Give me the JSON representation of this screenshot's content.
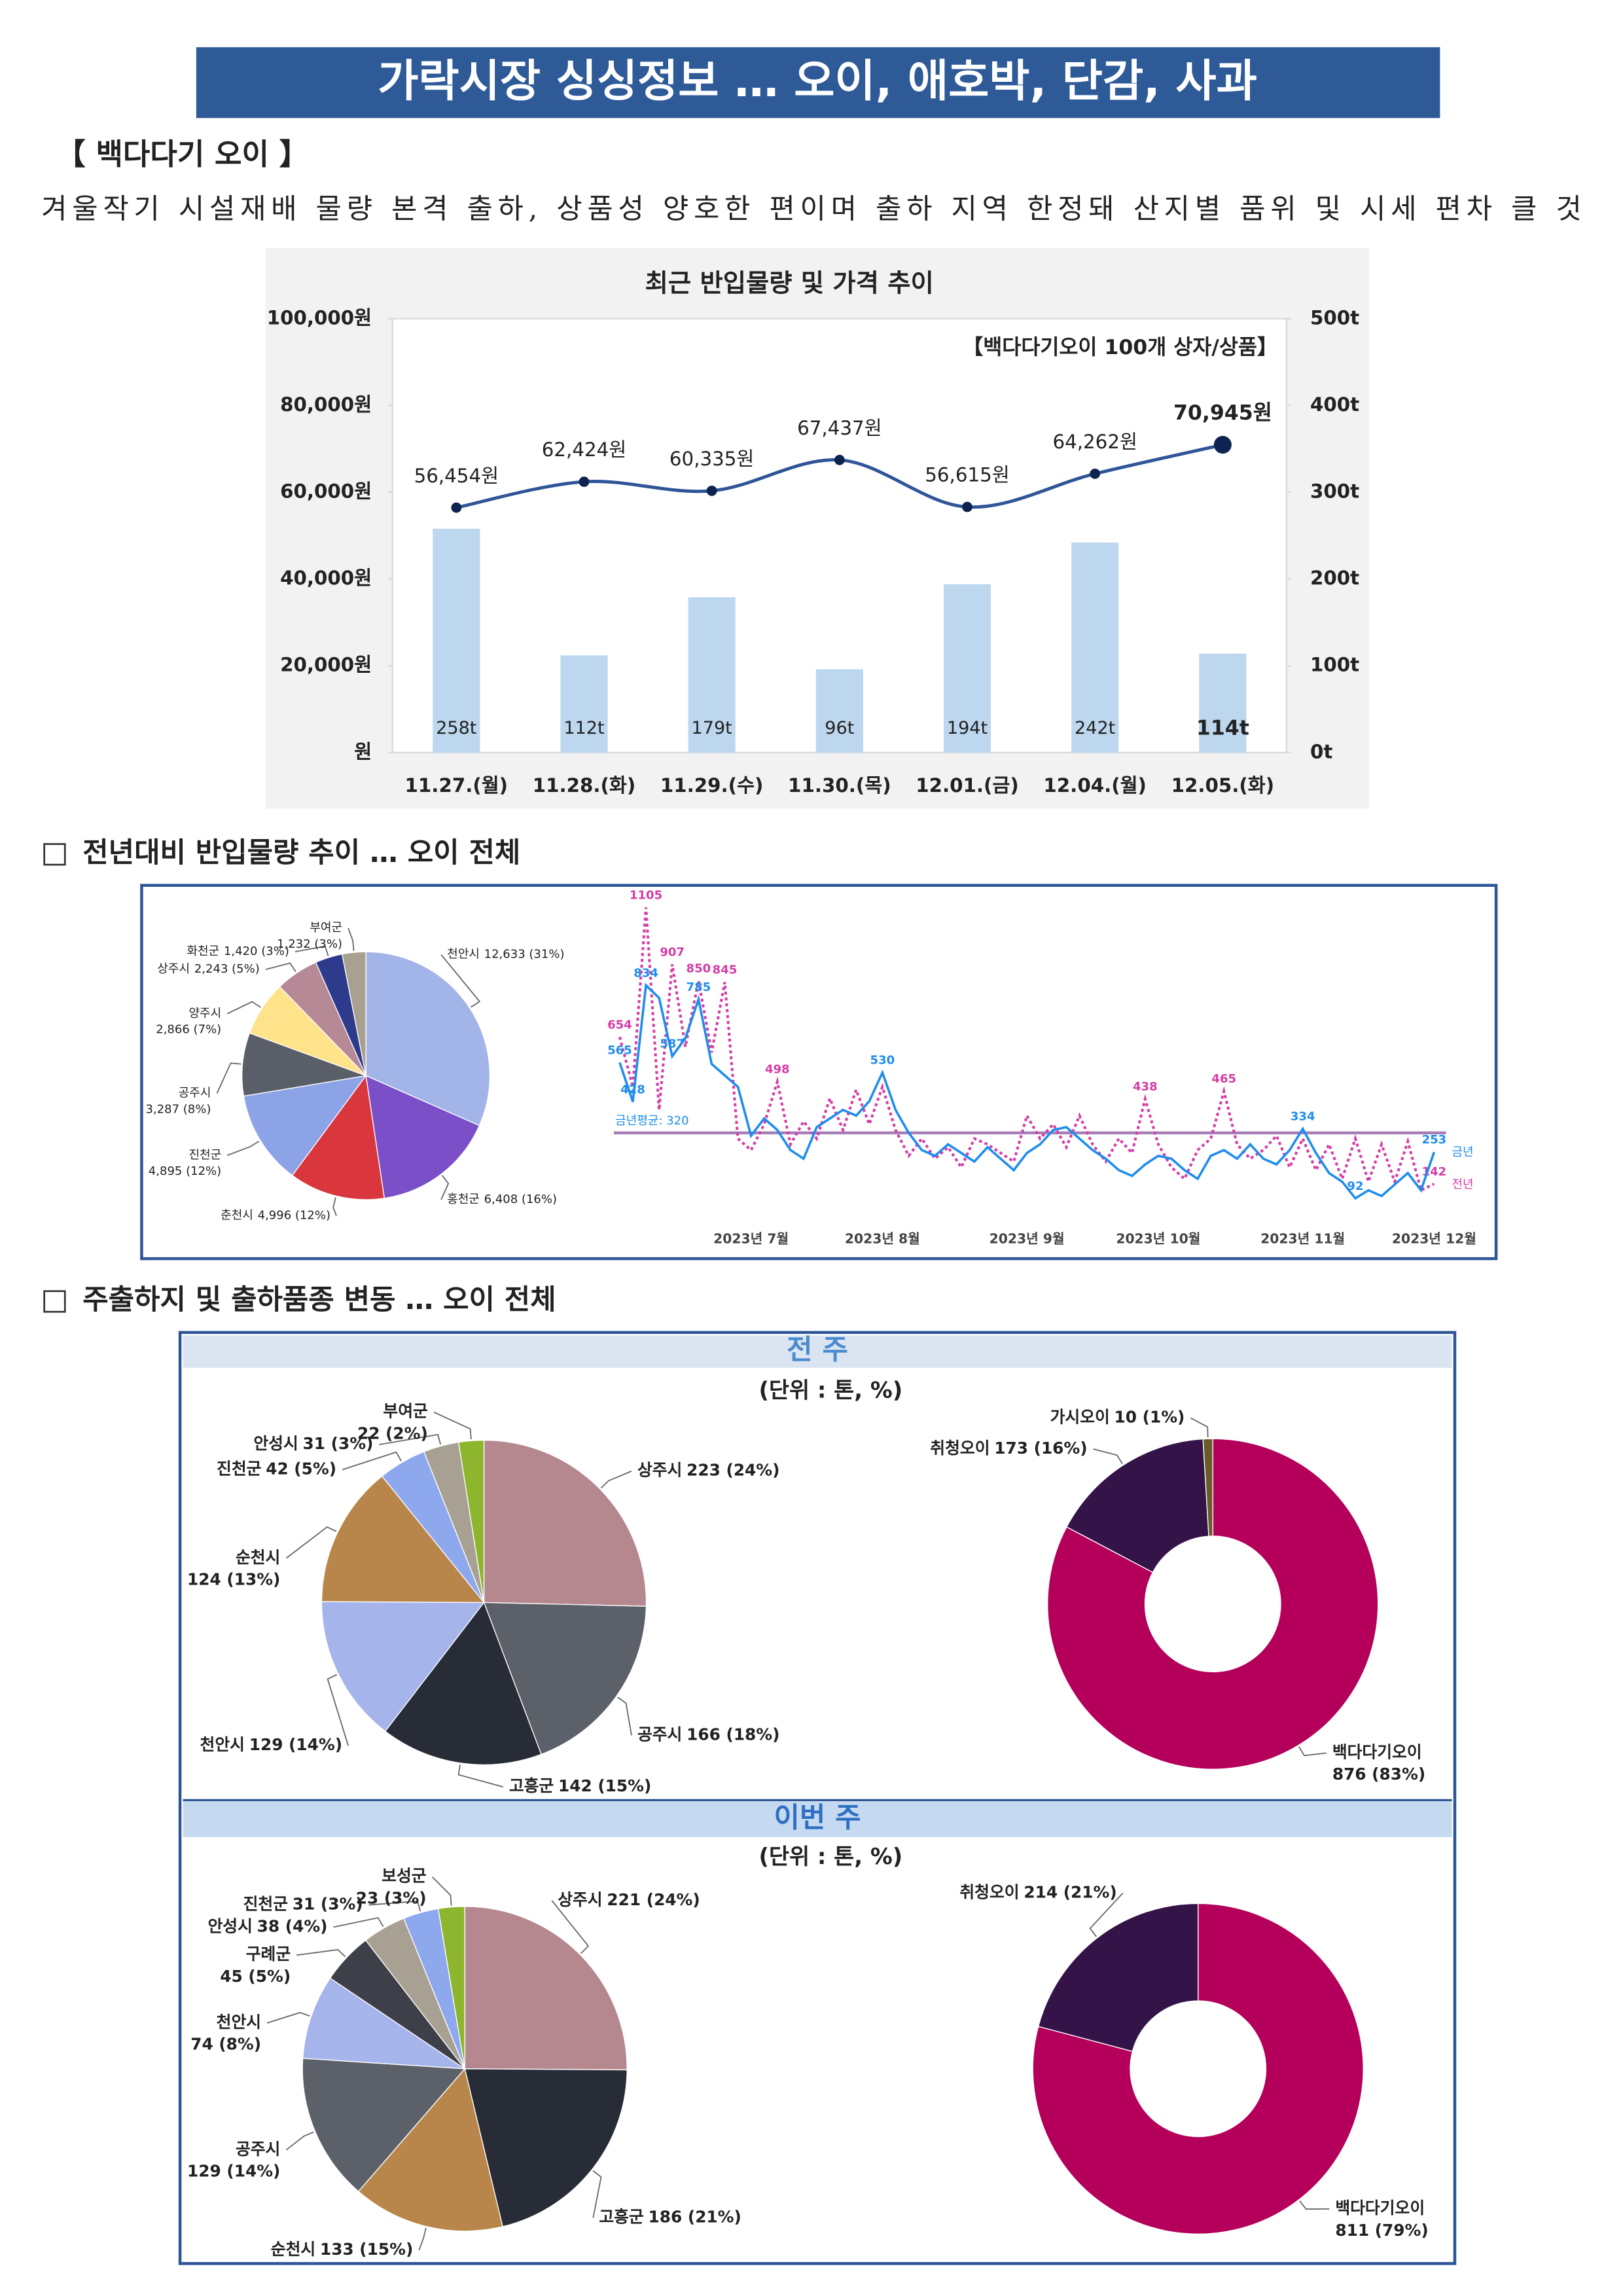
{
  "header": {
    "title": "가락시장 싱싱정보 … 오이, 애호박, 단감, 사과"
  },
  "section": {
    "title": "【 백다다기 오이 】",
    "description": "겨울작기 시설재배 물량 본격 출하, 상품성 양호한 편이며 출하 지역 한정돼 산지별 품위 및 시세 편차 클 것"
  },
  "headings": [
    "전년대비 반입물량 추이 … 오이 전체",
    "주출하지 및 출하품종 변동 … 오이 전체"
  ],
  "panels": [
    {
      "title": "전 주",
      "unit": "(단위 : 톤, %)"
    },
    {
      "title": "이번 주",
      "unit": "(단위 : 톤, %)"
    }
  ],
  "chart_data": [
    {
      "type": "combo",
      "title": "최근 반입물량 및 가격 추이",
      "annotation": "【백다다기오이 100개 상자/상품】",
      "categories": [
        "11.27.(월)",
        "11.28.(화)",
        "11.29.(수)",
        "11.30.(목)",
        "12.01.(금)",
        "12.04.(월)",
        "12.05.(화)"
      ],
      "ylim": [
        0,
        100000
      ],
      "yticks": [
        {
          "value": 0,
          "label": "원"
        },
        {
          "value": 20000,
          "label": "20,000원"
        },
        {
          "value": 40000,
          "label": "40,000원"
        },
        {
          "value": 60000,
          "label": "60,000원"
        },
        {
          "value": 80000,
          "label": "80,000원"
        },
        {
          "value": 100000,
          "label": "100,000원"
        }
      ],
      "y2lim": [
        0,
        500
      ],
      "y2ticks": [
        {
          "value": 0,
          "label": "0t"
        },
        {
          "value": 100,
          "label": "100t"
        },
        {
          "value": 200,
          "label": "200t"
        },
        {
          "value": 300,
          "label": "300t"
        },
        {
          "value": 400,
          "label": "400t"
        },
        {
          "value": 500,
          "label": "500t"
        }
      ],
      "series": [
        {
          "type": "bar",
          "axis": "y2",
          "color": "#bdd7ee",
          "values": [
            258,
            112,
            179,
            96,
            194,
            242,
            114
          ],
          "value_labels": [
            "258t",
            "112t",
            "179t",
            "96t",
            "194t",
            "242t",
            "114t"
          ]
        },
        {
          "type": "line",
          "color": "#2f5597",
          "values": [
            56454,
            62424,
            60335,
            67437,
            56615,
            64262,
            70945
          ],
          "value_labels": [
            "56,454원",
            "62,424원",
            "60,335원",
            "67,437원",
            "56,615원",
            "64,262원",
            "70,945원"
          ]
        }
      ]
    },
    {
      "type": "pie",
      "categories": [
        "천안시",
        "홍천군",
        "춘천시",
        "진천군",
        "공주시",
        "양주시",
        "상주시",
        "화천군",
        "부여군"
      ],
      "values": [
        12633,
        6408,
        4996,
        4895,
        3287,
        2866,
        2243,
        1420,
        1232
      ],
      "value_labels": [
        "12,633 (31%)",
        "6,408 (16%)",
        "4,996 (12%)",
        "4,895 (12%)",
        "3,287 (8%)",
        "2,866 (7%)",
        "2,243 (5%)",
        "1,420 (3%)",
        "1,232 (3%)"
      ],
      "colors": [
        "#a3b4e8",
        "#7b4fc8",
        "#d9363e",
        "#8ca3e8",
        "#5a5e68",
        "#ffe38a",
        "#b58a96",
        "#2e3a8c",
        "#a8a090"
      ]
    },
    {
      "type": "line",
      "categories": [
        null,
        null,
        null,
        null,
        null,
        null,
        null,
        null,
        null,
        null,
        "2023년 7월",
        null,
        null,
        null,
        null,
        null,
        null,
        null,
        null,
        null,
        "2023년 8월",
        null,
        null,
        null,
        null,
        null,
        null,
        null,
        null,
        null,
        null,
        "2023년 9월",
        null,
        null,
        null,
        null,
        null,
        null,
        null,
        null,
        null,
        "2023년 10월",
        null,
        null,
        null,
        null,
        null,
        null,
        null,
        null,
        null,
        null,
        "2023년 11월",
        null,
        null,
        null,
        null,
        null,
        null,
        null,
        null,
        null,
        "2023년 12월"
      ],
      "reference_line": {
        "value": 320,
        "label": "금년평균: 320"
      },
      "series": [
        {
          "name": "금년",
          "color": "#1f8ded",
          "values": [
            565,
            428,
            834,
            790,
            587,
            650,
            785,
            560,
            520,
            480,
            310,
            370,
            330,
            260,
            230,
            340,
            370,
            400,
            380,
            430,
            530,
            400,
            320,
            260,
            240,
            280,
            250,
            220,
            270,
            230,
            190,
            250,
            280,
            330,
            340,
            300,
            260,
            230,
            190,
            170,
            210,
            240,
            230,
            190,
            160,
            240,
            260,
            230,
            280,
            230,
            210,
            260,
            334,
            250,
            180,
            150,
            92,
            120,
            100,
            140,
            180,
            120,
            253
          ],
          "value_labels": [
            "565",
            "428",
            "834",
            null,
            "587",
            null,
            "785",
            null,
            null,
            null,
            null,
            null,
            null,
            null,
            null,
            null,
            null,
            null,
            null,
            null,
            "530",
            null,
            null,
            null,
            null,
            null,
            null,
            null,
            null,
            null,
            null,
            null,
            null,
            null,
            null,
            null,
            null,
            null,
            null,
            null,
            null,
            null,
            null,
            null,
            null,
            null,
            null,
            null,
            null,
            null,
            null,
            null,
            "334",
            null,
            null,
            null,
            "92",
            null,
            null,
            null,
            null,
            null,
            "253"
          ]
        },
        {
          "name": "전년",
          "color": "#d63ca6",
          "dash": true,
          "values": [
            654,
            480,
            1105,
            400,
            907,
            620,
            850,
            600,
            845,
            300,
            260,
            350,
            498,
            280,
            360,
            300,
            440,
            330,
            470,
            350,
            480,
            330,
            240,
            300,
            230,
            270,
            200,
            300,
            280,
            250,
            220,
            380,
            300,
            350,
            270,
            380,
            280,
            220,
            300,
            250,
            438,
            280,
            200,
            160,
            260,
            300,
            465,
            280,
            230,
            260,
            310,
            200,
            300,
            190,
            280,
            160,
            300,
            150,
            280,
            150,
            290,
            120,
            142
          ],
          "value_labels": [
            "654",
            null,
            "1105",
            null,
            "907",
            null,
            "850",
            null,
            "845",
            null,
            null,
            null,
            "498",
            null,
            null,
            null,
            null,
            null,
            null,
            null,
            null,
            null,
            null,
            null,
            null,
            null,
            null,
            null,
            null,
            null,
            null,
            null,
            null,
            null,
            null,
            null,
            null,
            null,
            null,
            null,
            "438",
            null,
            null,
            null,
            null,
            null,
            "465",
            null,
            null,
            null,
            null,
            null,
            null,
            null,
            null,
            null,
            null,
            null,
            null,
            null,
            null,
            null,
            "142"
          ]
        }
      ]
    },
    {
      "type": "pie",
      "categories": [
        "상주시",
        "공주시",
        "고흥군",
        "천안시",
        "순천시",
        "진천군",
        "안성시",
        "부여군"
      ],
      "values": [
        223,
        166,
        142,
        129,
        124,
        42,
        31,
        22
      ],
      "value_labels": [
        "223 (24%)",
        "166 (18%)",
        "142 (15%)",
        "129 (14%)",
        "124 (13%)",
        "42 (5%)",
        "31 (3%)",
        "22 (2%)"
      ],
      "colors": [
        "#b5878f",
        "#5c6069",
        "#282c36",
        "#a6b4ec",
        "#b8864a",
        "#8ea8ee",
        "#a8a093",
        "#8db52e"
      ]
    },
    {
      "type": "donut",
      "categories": [
        "백다다기오이",
        "취청오이",
        "가시오이"
      ],
      "values": [
        876,
        173,
        10
      ],
      "value_labels": [
        "876 (83%)",
        "173 (16%)",
        "10 (1%)"
      ],
      "colors": [
        "#b5005b",
        "#341348",
        "#6b5a2a"
      ]
    },
    {
      "type": "pie",
      "categories": [
        "상주시",
        "고흥군",
        "순천시",
        "공주시",
        "천안시",
        "구례군",
        "안성시",
        "진천군",
        "보성군"
      ],
      "values": [
        221,
        186,
        133,
        129,
        74,
        45,
        38,
        31,
        23
      ],
      "value_labels": [
        "221 (24%)",
        "186 (21%)",
        "133 (15%)",
        "129 (14%)",
        "74 (8%)",
        "45 (5%)",
        "38 (4%)",
        "31 (3%)",
        "23 (3%)"
      ],
      "colors": [
        "#b5878f",
        "#282c36",
        "#b8864a",
        "#5c6069",
        "#a6b4ec",
        "#3e4049",
        "#a8a093",
        "#8ea8ee",
        "#8db52e"
      ]
    },
    {
      "type": "donut",
      "categories": [
        "백다다기오이",
        "취청오이"
      ],
      "values": [
        811,
        214
      ],
      "value_labels": [
        "811 (79%)",
        "214 (21%)"
      ],
      "colors": [
        "#b5005b",
        "#341348"
      ]
    }
  ]
}
